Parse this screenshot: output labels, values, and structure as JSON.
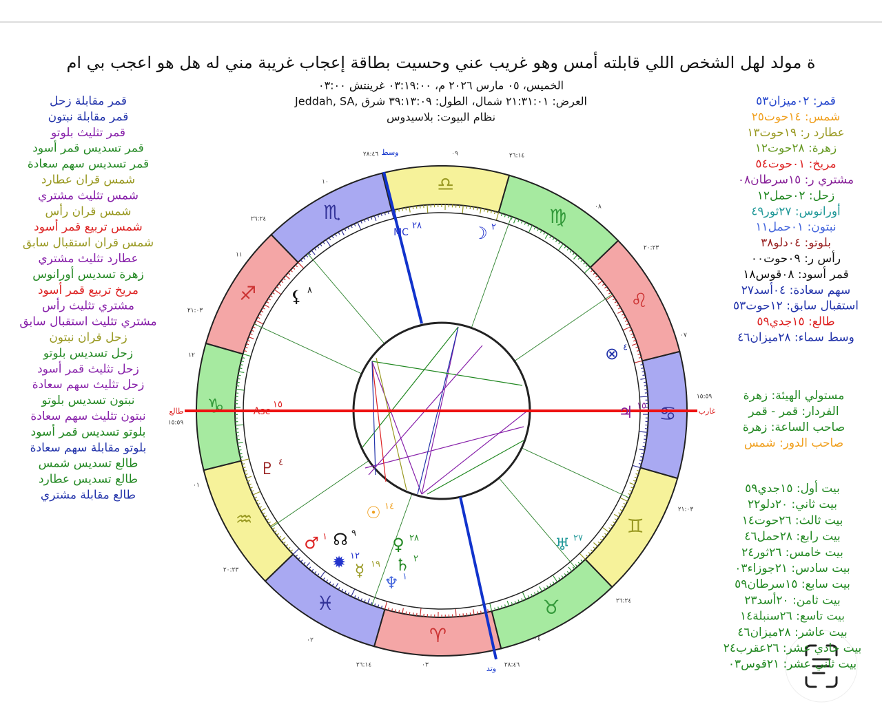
{
  "header": {
    "title": "ة مولد لهل الشخص اللي قابلته أمس وهو غريب عني وحسيت بطاقة  إعجاب غريبة مني له هل هو اعجب بي ام",
    "date_line": "الخميس، ٠٥ مارس ٢٠٢٦ م، ٠٣:١٩:٠٠ غرينتش ٠٣:٠٠",
    "location_line": "Jeddah, SA, العرض: ٢١:٣١:٠١ شمال، الطول: ٣٩:١٣:٠٩ شرق",
    "house_system": "نظام البيوت: بلاسيدوس"
  },
  "aspects": [
    {
      "text": "قمر مقابلة زحل",
      "color": "#2233aa"
    },
    {
      "text": "قمر مقابلة نبتون",
      "color": "#2233aa"
    },
    {
      "text": "قمر تثليث بلوتو",
      "color": "#8822aa"
    },
    {
      "text": "قمر تسديس قمر أسود",
      "color": "#228822"
    },
    {
      "text": "قمر تسديس سهم سعادة",
      "color": "#228822"
    },
    {
      "text": "شمس قران عطارد",
      "color": "#999922"
    },
    {
      "text": "شمس تثليث مشتري",
      "color": "#8822aa"
    },
    {
      "text": "شمس قران رأس",
      "color": "#999922"
    },
    {
      "text": "شمس تربيع قمر أسود",
      "color": "#dd2222"
    },
    {
      "text": "شمس قران استقبال سابق",
      "color": "#999922"
    },
    {
      "text": "عطارد تثليث مشتري",
      "color": "#8822aa"
    },
    {
      "text": "زهرة تسديس أورانوس",
      "color": "#228822"
    },
    {
      "text": "مريخ تربيع قمر أسود",
      "color": "#dd2222"
    },
    {
      "text": "مشتري تثليث رأس",
      "color": "#8822aa"
    },
    {
      "text": "مشتري تثليث استقبال سابق",
      "color": "#8822aa"
    },
    {
      "text": "زحل قران نبتون",
      "color": "#999922"
    },
    {
      "text": "زحل تسديس بلوتو",
      "color": "#228822"
    },
    {
      "text": "زحل تثليث قمر أسود",
      "color": "#8822aa"
    },
    {
      "text": "زحل تثليث سهم سعادة",
      "color": "#8822aa"
    },
    {
      "text": "نبتون تسديس بلوتو",
      "color": "#228822"
    },
    {
      "text": "نبتون تثليث سهم سعادة",
      "color": "#8822aa"
    },
    {
      "text": "بلوتو تسديس قمر أسود",
      "color": "#228822"
    },
    {
      "text": "بلوتو مقابلة سهم سعادة",
      "color": "#2233aa"
    },
    {
      "text": "طالع تسديس شمس",
      "color": "#228822"
    },
    {
      "text": "طالع تسديس عطارد",
      "color": "#228822"
    },
    {
      "text": "طالع مقابلة مشتري",
      "color": "#2233aa"
    }
  ],
  "positions": [
    {
      "text": "قمر: ٠٢ميزان٥٣",
      "color": "#2244cc"
    },
    {
      "text": "شمس: ١٤حوت٢٥",
      "color": "#f0a020"
    },
    {
      "text": "عطارد ر: ١٩حوت١٣",
      "color": "#999922"
    },
    {
      "text": "زهرة: ٢٨حوت١٢",
      "color": "#669922"
    },
    {
      "text": "مريخ: ٠١حوت٥٤",
      "color": "#dd2222"
    },
    {
      "text": "مشتري ر: ١٥سرطان٠٨",
      "color": "#882299"
    },
    {
      "text": "زحل: ٠٢حمل١٢",
      "color": "#228822"
    },
    {
      "text": "أورانوس: ٢٧ثور٤٩",
      "color": "#229999"
    },
    {
      "text": "نبتون: ٠١حمل١١",
      "color": "#4466dd"
    },
    {
      "text": "بلوتو: ٠٤دلو٣٨",
      "color": "#992222"
    },
    {
      "text": "رأس ر: ٠٩حوت٠٠",
      "color": "#111111"
    },
    {
      "text": "قمر أسود: ٠٨قوس١٨",
      "color": "#111111"
    },
    {
      "text": "سهم سعادة: ٠٤أسد٢٧",
      "color": "#2233aa"
    },
    {
      "text": "استقبال سابق: ١٢حوت٥٣",
      "color": "#2233aa"
    },
    {
      "text": "طالع: ١٥جدي٥٩",
      "color": "#dd2222"
    },
    {
      "text": "وسط سماء: ٢٨ميزان٤٦",
      "color": "#2233aa"
    }
  ],
  "rulers": [
    {
      "text": "مستولي الهيئة: زهرة",
      "color": "#228822"
    },
    {
      "text": "الفردار: قمر - قمر",
      "color": "#228822"
    },
    {
      "text": "صاحب الساعة: زهرة",
      "color": "#228822"
    },
    {
      "text": "صاحب الدور: شمس",
      "color": "#f0a020"
    }
  ],
  "houses": [
    "بيت أول: ١٥جدي٥٩",
    "بيت ثاني: ٢٠دلو٢٢",
    "بيت ثالث: ٢٦حوت١٤",
    "بيت رابع: ٢٨حمل٤٦",
    "بيت خامس: ٢٦ثور٢٤",
    "بيت سادس: ٢١جوزاء٠٣",
    "بيت سابع: ١٥سرطان٥٩",
    "بيت ثامن: ٢٠أسد٢٣",
    "بيت تاسع: ٢٦سنبلة١٤",
    "بيت عاشر: ٢٨ميزان٤٦",
    "بيت حادي عشر: ٢٦عقرب٢٤",
    "بيت ثاني عشر: ٢١قوس٠٣"
  ],
  "wheel": {
    "signs": [
      "♈",
      "♉",
      "♊",
      "♋",
      "♌",
      "♍",
      "♎",
      "♏",
      "♐",
      "♑",
      "♒",
      "♓"
    ],
    "angles": {
      "mc": "وسط",
      "asc": "طالع",
      "dsc": "غارب",
      "ic": "وتد"
    },
    "planets": [
      {
        "glyph": "MC",
        "deg": "٢٨",
        "color": "#2233cc"
      },
      {
        "glyph": "☽",
        "deg": "٢",
        "color": "#2233cc"
      },
      {
        "glyph": "⚸",
        "deg": "٨",
        "color": "#111111"
      },
      {
        "glyph": "⊗",
        "deg": "٤",
        "color": "#2233aa"
      },
      {
        "glyph": "♃",
        "deg": "١٥",
        "color": "#882299"
      },
      {
        "glyph": "Asc",
        "deg": "١٥",
        "color": "#dd2222"
      },
      {
        "glyph": "♇",
        "deg": "٤",
        "color": "#992222"
      },
      {
        "glyph": "☉",
        "deg": "١٤",
        "color": "#f0a020"
      },
      {
        "glyph": "♂",
        "deg": "١",
        "color": "#dd2222"
      },
      {
        "glyph": "☊",
        "deg": "٩",
        "color": "#111111"
      },
      {
        "glyph": "✹",
        "deg": "١٢",
        "color": "#2233cc"
      },
      {
        "glyph": "☿",
        "deg": "١٩",
        "color": "#999922"
      },
      {
        "glyph": "♀",
        "deg": "٢٨",
        "color": "#228822"
      },
      {
        "glyph": "♄",
        "deg": "٢",
        "color": "#228822"
      },
      {
        "glyph": "♆",
        "deg": "١",
        "color": "#4466dd"
      },
      {
        "glyph": "♅",
        "deg": "٢٧",
        "color": "#229999"
      }
    ],
    "cusp_labels": [
      "٢٨:٤٦",
      "٠٩",
      "٢٦:١٤",
      "٠٨",
      "٢٠:٢٣",
      "٠٧",
      "١٥:٥٩",
      "٢١:٠٣",
      "٢٦:٢٤",
      "٠٤",
      "٢٨:٤٦",
      "٠٣",
      "٢٦:١٤",
      "٠٢",
      "٢٠:٢٣",
      "٠١",
      "١٥:٥٩",
      "١٢",
      "٢١:٠٣",
      "١١",
      "٢٦:٢٤",
      "١٠"
    ]
  }
}
